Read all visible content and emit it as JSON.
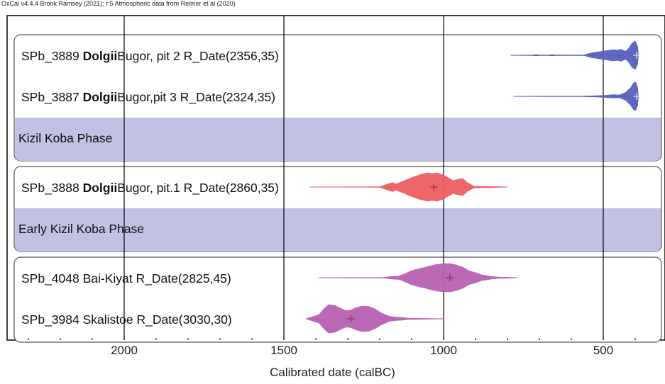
{
  "credit": "OxCal v4.4.4 Bronk Ramsey (2021); r:5 Atmospheric data from Reimer et al (2020)",
  "chart_data": {
    "type": "oxcal-multiplot",
    "xlabel": "Calibrated date (calBC)",
    "xlim": [
      2360,
      370
    ],
    "x_ticks": [
      2000,
      1500,
      1000,
      500
    ],
    "grid": true,
    "colors": {
      "blue": "#5560bb",
      "red": "#ec5f62",
      "purple": "#b761b2",
      "phase_band": "#c1c1e3"
    },
    "groups": [
      {
        "rows": [
          {
            "kind": "date",
            "pre": "SPb_3889 ",
            "bold": "Dolgii",
            "post": "Bugor, pit 2 R_Date(2356,35)",
            "color": "blue",
            "range": [
              790,
              390
            ],
            "median": 395,
            "profile": [
              [
                790,
                0.01
              ],
              [
                720,
                0.02
              ],
              [
                710,
                0.05
              ],
              [
                700,
                0.02
              ],
              [
                670,
                0.02
              ],
              [
                660,
                0.05
              ],
              [
                650,
                0.02
              ],
              [
                560,
                0.02
              ],
              [
                545,
                0.12
              ],
              [
                530,
                0.2
              ],
              [
                515,
                0.24
              ],
              [
                500,
                0.3
              ],
              [
                485,
                0.34
              ],
              [
                470,
                0.4
              ],
              [
                455,
                0.36
              ],
              [
                445,
                0.42
              ],
              [
                430,
                0.28
              ],
              [
                420,
                0.5
              ],
              [
                410,
                0.85
              ],
              [
                400,
                1.0
              ],
              [
                392,
                0.6
              ],
              [
                390,
                0.03
              ]
            ]
          },
          {
            "kind": "date",
            "pre": "SPb_3887 ",
            "bold": "Dolgii",
            "post": "Bugor,pit 3 R_Date(2324,35)",
            "color": "blue",
            "range": [
              780,
              390
            ],
            "median": 395,
            "profile": [
              [
                780,
                0.01
              ],
              [
                560,
                0.02
              ],
              [
                520,
                0.05
              ],
              [
                490,
                0.08
              ],
              [
                470,
                0.12
              ],
              [
                450,
                0.1
              ],
              [
                430,
                0.28
              ],
              [
                415,
                0.6
              ],
              [
                405,
                0.95
              ],
              [
                398,
                1.0
              ],
              [
                392,
                0.6
              ],
              [
                390,
                0.03
              ]
            ]
          },
          {
            "kind": "phase",
            "label": "Kizil Koba Phase"
          }
        ]
      },
      {
        "rows": [
          {
            "kind": "date",
            "pre": "SPb_3888 ",
            "bold": "Dolgii",
            "post": "Bugor, pit.1 R_Date(2860,35)",
            "color": "red",
            "range": [
              1420,
              800
            ],
            "median": 1030,
            "profile": [
              [
                1420,
                0.01
              ],
              [
                1200,
                0.02
              ],
              [
                1180,
                0.18
              ],
              [
                1160,
                0.32
              ],
              [
                1150,
                0.22
              ],
              [
                1130,
                0.38
              ],
              [
                1110,
                0.58
              ],
              [
                1090,
                0.75
              ],
              [
                1070,
                0.9
              ],
              [
                1050,
                1.0
              ],
              [
                1035,
                0.95
              ],
              [
                1020,
                1.0
              ],
              [
                1000,
                0.85
              ],
              [
                985,
                0.65
              ],
              [
                970,
                0.45
              ],
              [
                955,
                0.55
              ],
              [
                940,
                0.6
              ],
              [
                925,
                0.3
              ],
              [
                905,
                0.06
              ],
              [
                800,
                0.01
              ]
            ]
          },
          {
            "kind": "phase",
            "label": "Early Kizil Koba Phase"
          }
        ]
      },
      {
        "rows": [
          {
            "kind": "date",
            "pre": "SPb_4048 Bai-Kiyat R_Date(2825,45)",
            "bold": "",
            "post": "",
            "color": "purple",
            "range": [
              1390,
              770
            ],
            "median": 980,
            "profile": [
              [
                1390,
                0.01
              ],
              [
                1190,
                0.02
              ],
              [
                1160,
                0.1
              ],
              [
                1140,
                0.12
              ],
              [
                1120,
                0.3
              ],
              [
                1100,
                0.5
              ],
              [
                1080,
                0.62
              ],
              [
                1060,
                0.72
              ],
              [
                1040,
                0.85
              ],
              [
                1020,
                0.95
              ],
              [
                1000,
                1.0
              ],
              [
                980,
                1.0
              ],
              [
                960,
                0.9
              ],
              [
                940,
                0.75
              ],
              [
                920,
                0.48
              ],
              [
                900,
                0.36
              ],
              [
                880,
                0.2
              ],
              [
                850,
                0.1
              ],
              [
                830,
                0.05
              ],
              [
                770,
                0.01
              ]
            ]
          },
          {
            "kind": "date",
            "pre": "SPb_3984 Skalistoe R_Date(3030,30)",
            "bold": "",
            "post": "",
            "color": "purple",
            "range": [
              1430,
              1000
            ],
            "median": 1290,
            "profile": [
              [
                1430,
                0.01
              ],
              [
                1390,
                0.3
              ],
              [
                1375,
                0.7
              ],
              [
                1360,
                1.0
              ],
              [
                1340,
                0.95
              ],
              [
                1320,
                0.72
              ],
              [
                1305,
                0.58
              ],
              [
                1290,
                0.62
              ],
              [
                1275,
                0.78
              ],
              [
                1255,
                0.9
              ],
              [
                1235,
                0.88
              ],
              [
                1215,
                0.7
              ],
              [
                1195,
                0.42
              ],
              [
                1170,
                0.18
              ],
              [
                1150,
                0.12
              ],
              [
                1130,
                0.1
              ],
              [
                1110,
                0.04
              ],
              [
                1000,
                0.01
              ]
            ]
          }
        ]
      }
    ]
  }
}
